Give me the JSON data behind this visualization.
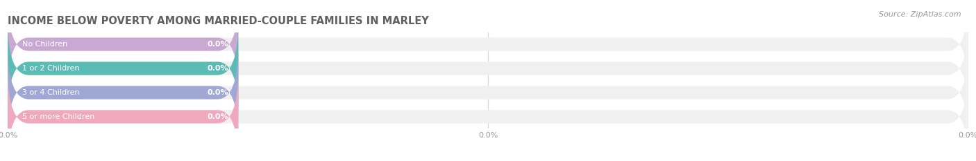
{
  "title": "INCOME BELOW POVERTY AMONG MARRIED-COUPLE FAMILIES IN MARLEY",
  "source": "Source: ZipAtlas.com",
  "categories": [
    "No Children",
    "1 or 2 Children",
    "3 or 4 Children",
    "5 or more Children"
  ],
  "values": [
    0.0,
    0.0,
    0.0,
    0.0
  ],
  "bar_colors": [
    "#c9a8d4",
    "#5bbcb5",
    "#9fa8d4",
    "#f0a8be"
  ],
  "bar_bg_color": "#f0f0f0",
  "xlim_max": 100,
  "figsize": [
    14.06,
    2.33
  ],
  "dpi": 100,
  "title_fontsize": 10.5,
  "label_fontsize": 8,
  "value_fontsize": 8,
  "tick_fontsize": 8,
  "source_fontsize": 8,
  "background_color": "#ffffff",
  "grid_color": "#d8d8d8",
  "min_colored_pct": 24
}
